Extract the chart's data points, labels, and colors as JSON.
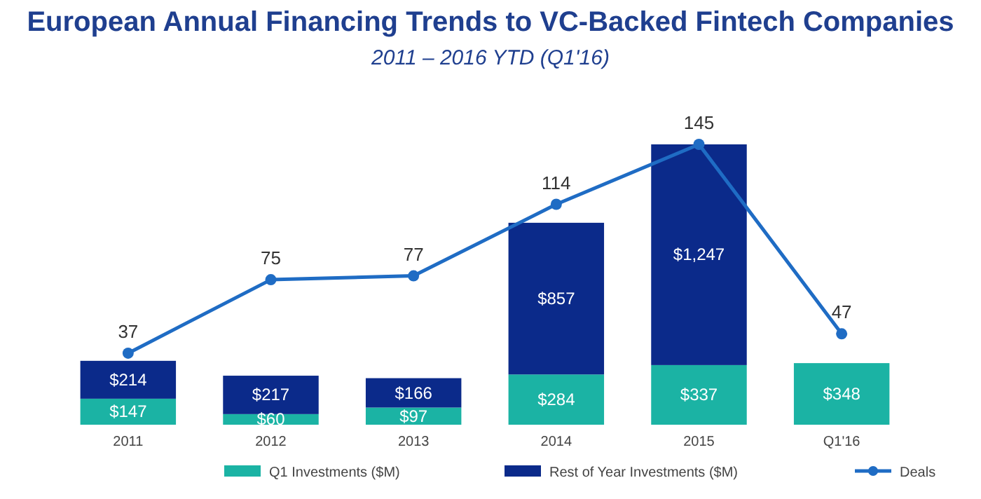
{
  "chart_data": {
    "type": "bar",
    "title": "European Annual Financing Trends to VC-Backed Fintech Companies",
    "subtitle": "2011 – 2016 YTD (Q1'16)",
    "categories": [
      "2011",
      "2012",
      "2013",
      "2014",
      "2015",
      "Q1'16"
    ],
    "stacked": true,
    "data_labels": true,
    "legend": "bottom",
    "marker": "circle",
    "line_style": "solid",
    "series": [
      {
        "name": "Q1 Investments ($M)",
        "color": "#1bb3a4",
        "values": [
          147,
          60,
          97,
          284,
          337,
          348
        ],
        "value_labels": [
          "$147",
          "$60",
          "$97",
          "$284",
          "$337",
          "$348"
        ]
      },
      {
        "name": "Rest of Year Investments ($M)",
        "color": "#0b2a8a",
        "values": [
          214,
          217,
          166,
          857,
          1247,
          null
        ],
        "value_labels": [
          "$214",
          "$217",
          "$166",
          "$857",
          "$1,247",
          null
        ]
      },
      {
        "name": "Deals",
        "type": "line",
        "axis": "y2",
        "color": "#1f6cc4",
        "values": [
          37,
          75,
          77,
          114,
          145,
          47
        ]
      }
    ]
  }
}
